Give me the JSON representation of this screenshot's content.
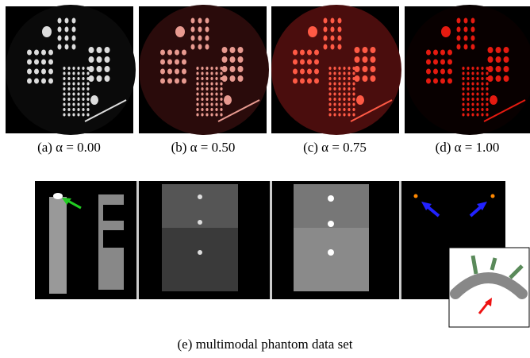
{
  "subfigures": [
    {
      "caption": "(a)  α = 0.00"
    },
    {
      "caption": "(b)  α = 0.50"
    },
    {
      "caption": "(c)  α = 0.75"
    },
    {
      "caption": "(d)  α = 1.00"
    }
  ],
  "bottom": {
    "caption": "(e)  multimodal phantom data set"
  }
}
